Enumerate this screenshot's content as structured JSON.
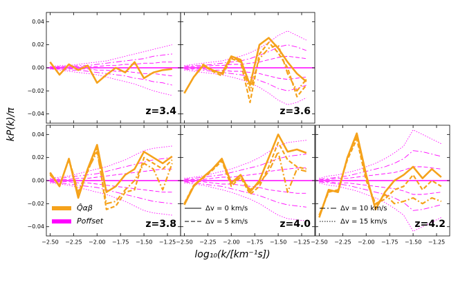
{
  "chart_data": {
    "type": "line",
    "xlabel": "log₁₀(k/[km⁻¹s])",
    "ylabel": "kP(k)/π",
    "x": [
      -2.5,
      -2.4,
      -2.3,
      -2.2,
      -2.1,
      -2.0,
      -1.9,
      -1.8,
      -1.7,
      -1.6,
      -1.5,
      -1.4,
      -1.3,
      -1.2
    ],
    "xlim": [
      -2.54,
      -1.11
    ],
    "ylim": [
      -0.048,
      0.048
    ],
    "xticks": [
      {
        "value": -2.5,
        "label": "−2.50"
      },
      {
        "value": -2.25,
        "label": "−2.25"
      },
      {
        "value": -2.0,
        "label": "−2.00"
      },
      {
        "value": -1.75,
        "label": "−1.75"
      },
      {
        "value": -1.5,
        "label": "−1.50"
      },
      {
        "value": -1.25,
        "label": "−1.25"
      }
    ],
    "yticks": [
      {
        "value": -0.04,
        "label": "−0.04"
      },
      {
        "value": -0.02,
        "label": "−0.02"
      },
      {
        "value": 0,
        "label": "0.00"
      },
      0.02,
      0.04
    ],
    "orange": "#f5a21b",
    "magenta": "#ff00ff",
    "offset": 0,
    "panels": [
      {
        "label": "z=3.4",
        "series": [
          {
            "style": "solid",
            "values": [
              0.005,
              -0.006,
              0.003,
              -0.002,
              0.002,
              -0.013,
              -0.006,
              0.0,
              -0.004,
              0.005,
              -0.009,
              -0.004,
              -0.002,
              -0.001
            ]
          }
        ],
        "envelopes": [
          {
            "style": "dotted",
            "values": [
              0.001,
              0.002,
              0.002,
              0.003,
              0.004,
              0.005,
              0.006,
              0.008,
              0.01,
              0.012,
              0.014,
              0.016,
              0.018,
              0.02
            ]
          },
          {
            "style": "dotted",
            "values": [
              -0.001,
              -0.002,
              -0.003,
              -0.004,
              -0.005,
              -0.006,
              -0.008,
              -0.01,
              -0.012,
              -0.014,
              -0.017,
              -0.02,
              -0.022,
              -0.024
            ]
          },
          {
            "style": "dashdot",
            "values": [
              0.001,
              0.001,
              0.001,
              0.002,
              0.002,
              0.003,
              0.004,
              0.005,
              0.006,
              0.007,
              0.008,
              0.01,
              0.011,
              0.012
            ]
          },
          {
            "style": "dashdot",
            "values": [
              -0.001,
              -0.001,
              -0.002,
              -0.002,
              -0.003,
              -0.004,
              -0.005,
              -0.006,
              -0.007,
              -0.009,
              -0.01,
              -0.012,
              -0.013,
              -0.015
            ]
          },
          {
            "style": "dashed",
            "values": [
              0,
              0.001,
              0.001,
              0.001,
              0.001,
              0.001,
              0.002,
              0.002,
              0.003,
              0.003,
              0.004,
              0.004,
              0.005,
              0.005
            ]
          },
          {
            "style": "dashed",
            "values": [
              0,
              -0.001,
              -0.001,
              -0.001,
              -0.001,
              -0.002,
              -0.002,
              -0.003,
              -0.003,
              -0.004,
              -0.005,
              -0.005,
              -0.006,
              -0.007
            ]
          }
        ]
      },
      {
        "label": "z=3.6",
        "series": [
          {
            "style": "solid",
            "values": [
              -0.022,
              -0.008,
              0.002,
              -0.002,
              -0.005,
              0.01,
              0.007,
              -0.015,
              0.02,
              0.026,
              0.017,
              0.005,
              -0.005,
              -0.012
            ]
          },
          {
            "style": "dashed",
            "values": [
              -0.022,
              -0.008,
              0.002,
              -0.003,
              -0.007,
              0.008,
              0.005,
              -0.03,
              0.012,
              0.022,
              0.013,
              0.0,
              -0.025,
              -0.015
            ]
          },
          {
            "style": "dashdot",
            "values": [
              -0.022,
              -0.008,
              0.003,
              -0.002,
              -0.005,
              0.009,
              0.006,
              -0.02,
              0.008,
              0.017,
              0.02,
              -0.005,
              -0.02,
              -0.01
            ]
          }
        ],
        "envelopes": [
          {
            "style": "dotted",
            "values": [
              0.002,
              0.003,
              0.004,
              0.005,
              0.006,
              0.008,
              0.01,
              0.013,
              0.017,
              0.022,
              0.028,
              0.032,
              0.028,
              0.024
            ]
          },
          {
            "style": "dotted",
            "values": [
              -0.002,
              -0.003,
              -0.004,
              -0.005,
              -0.006,
              -0.008,
              -0.01,
              -0.013,
              -0.017,
              -0.022,
              -0.028,
              -0.032,
              -0.03,
              -0.026
            ]
          },
          {
            "style": "dashdot",
            "values": [
              0.001,
              0.002,
              0.002,
              0.003,
              0.004,
              0.005,
              0.006,
              0.008,
              0.011,
              0.014,
              0.018,
              0.02,
              0.018,
              0.015
            ]
          },
          {
            "style": "dashdot",
            "values": [
              -0.001,
              -0.002,
              -0.002,
              -0.003,
              -0.004,
              -0.005,
              -0.006,
              -0.008,
              -0.011,
              -0.014,
              -0.018,
              -0.02,
              -0.018,
              -0.015
            ]
          },
          {
            "style": "dashed",
            "values": [
              0.001,
              0.001,
              0.001,
              0.002,
              0.002,
              0.003,
              0.003,
              0.004,
              0.005,
              0.007,
              0.009,
              0.01,
              0.009,
              0.008
            ]
          },
          {
            "style": "dashed",
            "values": [
              -0.001,
              -0.001,
              -0.001,
              -0.002,
              -0.002,
              -0.003,
              -0.003,
              -0.004,
              -0.005,
              -0.007,
              -0.009,
              -0.01,
              -0.009,
              -0.008
            ]
          }
        ]
      },
      {
        "label": "z=3.8",
        "series": [
          {
            "style": "solid",
            "values": [
              0.007,
              -0.005,
              0.019,
              -0.015,
              0.01,
              0.031,
              -0.01,
              -0.005,
              0.005,
              0.01,
              0.025,
              0.02,
              0.015,
              0.021
            ]
          },
          {
            "style": "dashed",
            "values": [
              0.005,
              -0.004,
              0.018,
              -0.012,
              0.008,
              0.028,
              -0.025,
              -0.022,
              -0.01,
              -0.008,
              0.02,
              0.015,
              0.01,
              0.018
            ]
          },
          {
            "style": "dashdot",
            "values": [
              0.006,
              -0.005,
              0.019,
              -0.01,
              0.009,
              0.025,
              -0.02,
              -0.018,
              -0.008,
              0.0,
              0.015,
              0.01,
              -0.008,
              0.015
            ]
          }
        ],
        "envelopes": [
          {
            "style": "dotted",
            "values": [
              0.002,
              0.003,
              0.004,
              0.006,
              0.008,
              0.01,
              0.012,
              0.015,
              0.018,
              0.022,
              0.026,
              0.028,
              0.029,
              0.03
            ]
          },
          {
            "style": "dotted",
            "values": [
              -0.002,
              -0.003,
              -0.004,
              -0.006,
              -0.008,
              -0.01,
              -0.012,
              -0.015,
              -0.018,
              -0.022,
              -0.026,
              -0.028,
              -0.029,
              -0.03
            ]
          },
          {
            "style": "dashdot",
            "values": [
              0.001,
              0.002,
              0.003,
              0.004,
              0.005,
              0.006,
              0.008,
              0.01,
              0.012,
              0.014,
              0.016,
              0.018,
              0.019,
              0.02
            ]
          },
          {
            "style": "dashdot",
            "values": [
              -0.001,
              -0.002,
              -0.003,
              -0.004,
              -0.005,
              -0.006,
              -0.008,
              -0.01,
              -0.012,
              -0.014,
              -0.016,
              -0.018,
              -0.019,
              -0.02
            ]
          },
          {
            "style": "dashed",
            "values": [
              0.001,
              0.001,
              0.001,
              0.002,
              0.002,
              0.003,
              0.004,
              0.005,
              0.006,
              0.007,
              0.008,
              0.009,
              0.01,
              0.01
            ]
          },
          {
            "style": "dashed",
            "values": [
              -0.001,
              -0.001,
              -0.001,
              -0.002,
              -0.002,
              -0.003,
              -0.004,
              -0.005,
              -0.006,
              -0.007,
              -0.008,
              -0.009,
              -0.01,
              -0.01
            ]
          }
        ],
        "legend": [
          {
            "label": "Q̂αβ",
            "color": "orange"
          },
          {
            "label": "Poffset",
            "color": "magenta"
          }
        ]
      },
      {
        "label": "z=4.0",
        "series": [
          {
            "style": "solid",
            "values": [
              -0.021,
              -0.005,
              0.003,
              0.01,
              0.019,
              -0.002,
              0.005,
              -0.01,
              0.0,
              0.02,
              0.04,
              0.025,
              0.027,
              0.024
            ]
          },
          {
            "style": "dashed",
            "values": [
              -0.02,
              -0.004,
              0.002,
              0.009,
              0.017,
              -0.005,
              0.003,
              -0.012,
              -0.005,
              0.012,
              0.033,
              0.018,
              0.012,
              0.01
            ]
          },
          {
            "style": "dashdot",
            "values": [
              -0.02,
              -0.004,
              0.003,
              0.01,
              0.018,
              -0.003,
              0.004,
              -0.008,
              -0.002,
              0.008,
              0.025,
              -0.01,
              0.01,
              0.008
            ]
          }
        ],
        "envelopes": [
          {
            "style": "dotted",
            "values": [
              0.002,
              0.003,
              0.004,
              0.006,
              0.008,
              0.01,
              0.013,
              0.016,
              0.02,
              0.025,
              0.03,
              0.033,
              0.034,
              0.035
            ]
          },
          {
            "style": "dotted",
            "values": [
              -0.002,
              -0.003,
              -0.004,
              -0.006,
              -0.008,
              -0.01,
              -0.013,
              -0.016,
              -0.02,
              -0.025,
              -0.03,
              -0.033,
              -0.034,
              -0.035
            ]
          },
          {
            "style": "dashdot",
            "values": [
              0.001,
              0.002,
              0.003,
              0.004,
              0.005,
              0.007,
              0.009,
              0.011,
              0.013,
              0.016,
              0.019,
              0.021,
              0.022,
              0.023
            ]
          },
          {
            "style": "dashdot",
            "values": [
              -0.001,
              -0.002,
              -0.003,
              -0.004,
              -0.005,
              -0.007,
              -0.009,
              -0.011,
              -0.013,
              -0.016,
              -0.019,
              -0.021,
              -0.022,
              -0.023
            ]
          },
          {
            "style": "dashed",
            "values": [
              0.001,
              0.001,
              0.001,
              0.002,
              0.003,
              0.003,
              0.004,
              0.005,
              0.006,
              0.008,
              0.009,
              0.01,
              0.011,
              0.011
            ]
          },
          {
            "style": "dashed",
            "values": [
              -0.001,
              -0.001,
              -0.001,
              -0.002,
              -0.003,
              -0.003,
              -0.004,
              -0.005,
              -0.006,
              -0.008,
              -0.009,
              -0.01,
              -0.011,
              -0.011
            ]
          }
        ],
        "legend": [
          {
            "label": "Δv = 0 km/s",
            "style": "solid"
          },
          {
            "label": "Δv = 5 km/s",
            "style": "dashed"
          }
        ]
      },
      {
        "label": "z=4.2",
        "series": [
          {
            "style": "solid",
            "values": [
              -0.032,
              -0.008,
              -0.01,
              0.02,
              0.041,
              0.005,
              -0.025,
              -0.01,
              0.0,
              0.005,
              0.012,
              0.002,
              0.01,
              0.003
            ]
          },
          {
            "style": "dashed",
            "values": [
              -0.03,
              -0.01,
              -0.008,
              0.018,
              0.036,
              0.0,
              -0.02,
              -0.016,
              -0.008,
              -0.005,
              0.005,
              -0.008,
              0.0,
              -0.005
            ]
          },
          {
            "style": "dashdot",
            "values": [
              -0.03,
              -0.009,
              -0.009,
              0.02,
              0.038,
              0.003,
              -0.022,
              -0.012,
              -0.02,
              -0.018,
              -0.015,
              -0.02,
              -0.015,
              -0.018
            ]
          }
        ],
        "envelopes": [
          {
            "style": "dotted",
            "values": [
              0.002,
              0.004,
              0.005,
              0.007,
              0.009,
              0.012,
              0.015,
              0.019,
              0.024,
              0.03,
              0.044,
              0.04,
              0.036,
              0.032
            ]
          },
          {
            "style": "dotted",
            "values": [
              -0.002,
              -0.004,
              -0.005,
              -0.007,
              -0.009,
              -0.012,
              -0.015,
              -0.019,
              -0.024,
              -0.03,
              -0.044,
              -0.04,
              -0.036,
              -0.032
            ]
          },
          {
            "style": "dashdot",
            "values": [
              0.001,
              0.002,
              0.003,
              0.004,
              0.006,
              0.008,
              0.01,
              0.012,
              0.015,
              0.019,
              0.026,
              0.025,
              0.023,
              0.021
            ]
          },
          {
            "style": "dashdot",
            "values": [
              -0.001,
              -0.002,
              -0.003,
              -0.004,
              -0.006,
              -0.008,
              -0.01,
              -0.012,
              -0.015,
              -0.019,
              -0.026,
              -0.025,
              -0.023,
              -0.021
            ]
          },
          {
            "style": "dashed",
            "values": [
              0.001,
              0.001,
              0.002,
              0.002,
              0.003,
              0.004,
              0.005,
              0.006,
              0.007,
              0.009,
              0.012,
              0.012,
              0.011,
              0.01
            ]
          },
          {
            "style": "dashed",
            "values": [
              -0.001,
              -0.001,
              -0.002,
              -0.002,
              -0.003,
              -0.004,
              -0.005,
              -0.006,
              -0.007,
              -0.009,
              -0.012,
              -0.012,
              -0.011,
              -0.01
            ]
          }
        ],
        "legend": [
          {
            "label": "Δv = 10 km/s",
            "style": "dashdot"
          },
          {
            "label": "Δv = 15 km/s",
            "style": "dotted"
          }
        ]
      }
    ]
  }
}
